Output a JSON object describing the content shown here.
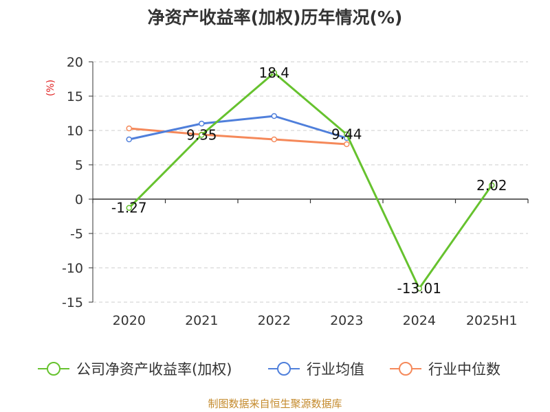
{
  "chart_data": {
    "type": "line",
    "title": "净资产收益率(加权)历年情况(%)",
    "ylabel": "(%)",
    "xlabel": "",
    "categories": [
      "2020",
      "2021",
      "2022",
      "2023",
      "2024",
      "2025H1"
    ],
    "ylim": [
      -15,
      20
    ],
    "yticks": [
      "20",
      "15",
      "10",
      "5",
      "0",
      "-5",
      "-10",
      "-15"
    ],
    "grid": true,
    "legend_position": "bottom",
    "series": [
      {
        "name": "公司净资产收益率(加权)",
        "color": "#66c22e",
        "values": [
          -1.27,
          9.35,
          18.4,
          9.44,
          -13.01,
          2.02
        ],
        "labels": [
          "-1.27",
          "9.35",
          "18.4",
          "9.44",
          "-13.01",
          "2.02"
        ]
      },
      {
        "name": "行业均值",
        "color": "#4f7fdb",
        "values": [
          8.7,
          11.0,
          12.1,
          8.9,
          null,
          null
        ]
      },
      {
        "name": "行业中位数",
        "color": "#f5895a",
        "values": [
          10.3,
          9.4,
          8.7,
          8.0,
          null,
          null
        ]
      }
    ]
  },
  "source": "制图数据来自恒生聚源数据库",
  "colors": {
    "ylabel": "#e02020",
    "grid": "#cccccc",
    "axis": "#333333",
    "text": "#333333",
    "source": "#c48a2c"
  }
}
